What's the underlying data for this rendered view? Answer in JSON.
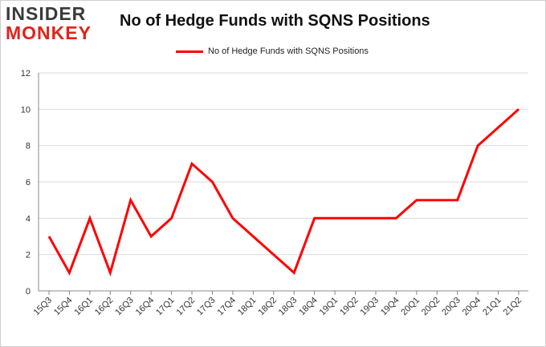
{
  "logo": {
    "line1": "INSIDER",
    "line2": "MONKEY"
  },
  "colors": {
    "series": "#ff0000",
    "grid": "#d9d9d9",
    "axis": "#888888",
    "logo_red": "#e2231a"
  },
  "chart_data": {
    "type": "line",
    "title": "No of Hedge Funds with SQNS Positions",
    "xlabel": "",
    "ylabel": "",
    "categories": [
      "15Q3",
      "15Q4",
      "16Q1",
      "16Q2",
      "16Q3",
      "16Q4",
      "17Q1",
      "17Q2",
      "17Q3",
      "17Q4",
      "18Q1",
      "18Q2",
      "18Q3",
      "18Q4",
      "19Q1",
      "19Q2",
      "19Q3",
      "19Q4",
      "20Q1",
      "20Q2",
      "20Q3",
      "20Q4",
      "21Q1",
      "21Q2"
    ],
    "series": [
      {
        "name": "No of Hedge Funds with SQNS Positions",
        "values": [
          3,
          1,
          4,
          1,
          5,
          3,
          4,
          7,
          6,
          4,
          3,
          2,
          1,
          4,
          4,
          4,
          4,
          4,
          5,
          5,
          5,
          8,
          9,
          10
        ]
      }
    ],
    "ylim": [
      0,
      12
    ],
    "yticks": [
      "0",
      "2",
      "4",
      "6",
      "8",
      "10",
      "12"
    ],
    "grid": true,
    "legend": "top-center"
  }
}
